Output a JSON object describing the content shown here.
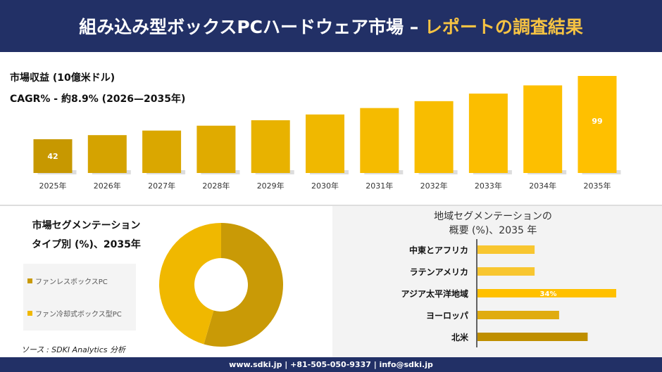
{
  "header": {
    "title_main": "組み込み型ボックスPCハードウェア市場 –",
    "title_accent": "レポートの調査結果"
  },
  "revenue": {
    "title": "市場収益 (10億米ドル)",
    "cagr": "CAGR% - 約8.9% (2026—2035年)"
  },
  "chart_data": [
    {
      "type": "bar",
      "categories": [
        "2025年",
        "2026年",
        "2027年",
        "2028年",
        "2029年",
        "2030年",
        "2031年",
        "2032年",
        "2033年",
        "2034年",
        "2035年"
      ],
      "values": [
        42,
        45.7,
        49.8,
        54.2,
        59.1,
        64.3,
        70.1,
        76.3,
        83.1,
        90.5,
        99
      ],
      "data_labels": {
        "0": "42",
        "10": "99"
      },
      "ylabel": "市場収益 (10億米ドル)",
      "grid": false
    },
    {
      "type": "pie",
      "title": "市場セグメンテーション タイプ別 (%)、2035年",
      "donut": true,
      "slices": [
        {
          "name": "ファンレスボックスPC",
          "value": 54.5,
          "color": "#c99a06"
        },
        {
          "name": "ファン冷却式ボックス型PC",
          "value": 45.5,
          "color": "#f0b800"
        }
      ],
      "legend_placement": "left"
    },
    {
      "type": "bar",
      "orientation": "horizontal",
      "title": "地域セグメンテーションの 概要 (%)、2035 年",
      "categories": [
        "中東とアフリカ",
        "ラテンアメリカ",
        "アジア太平洋地域",
        "ヨーロッパ",
        "北米"
      ],
      "values": [
        14,
        14,
        34,
        20,
        27
      ],
      "data_labels": {
        "2": "34%"
      },
      "colors": [
        "#f8c630",
        "#f8c630",
        "#ffc000",
        "#e0ac10",
        "#bf8f00"
      ]
    }
  ],
  "pie_title": {
    "line1": "市場セグメンテーション",
    "line2": "タイプ別 (%)、2035年"
  },
  "region_title": {
    "line1": "地域セグメンテーションの",
    "line2": "概要 (%)、2035 年"
  },
  "source": "ソース : SDKI Analytics 分析",
  "footer": "www.sdki.jp | +81-505-050-9337 | info@sdki.jp"
}
